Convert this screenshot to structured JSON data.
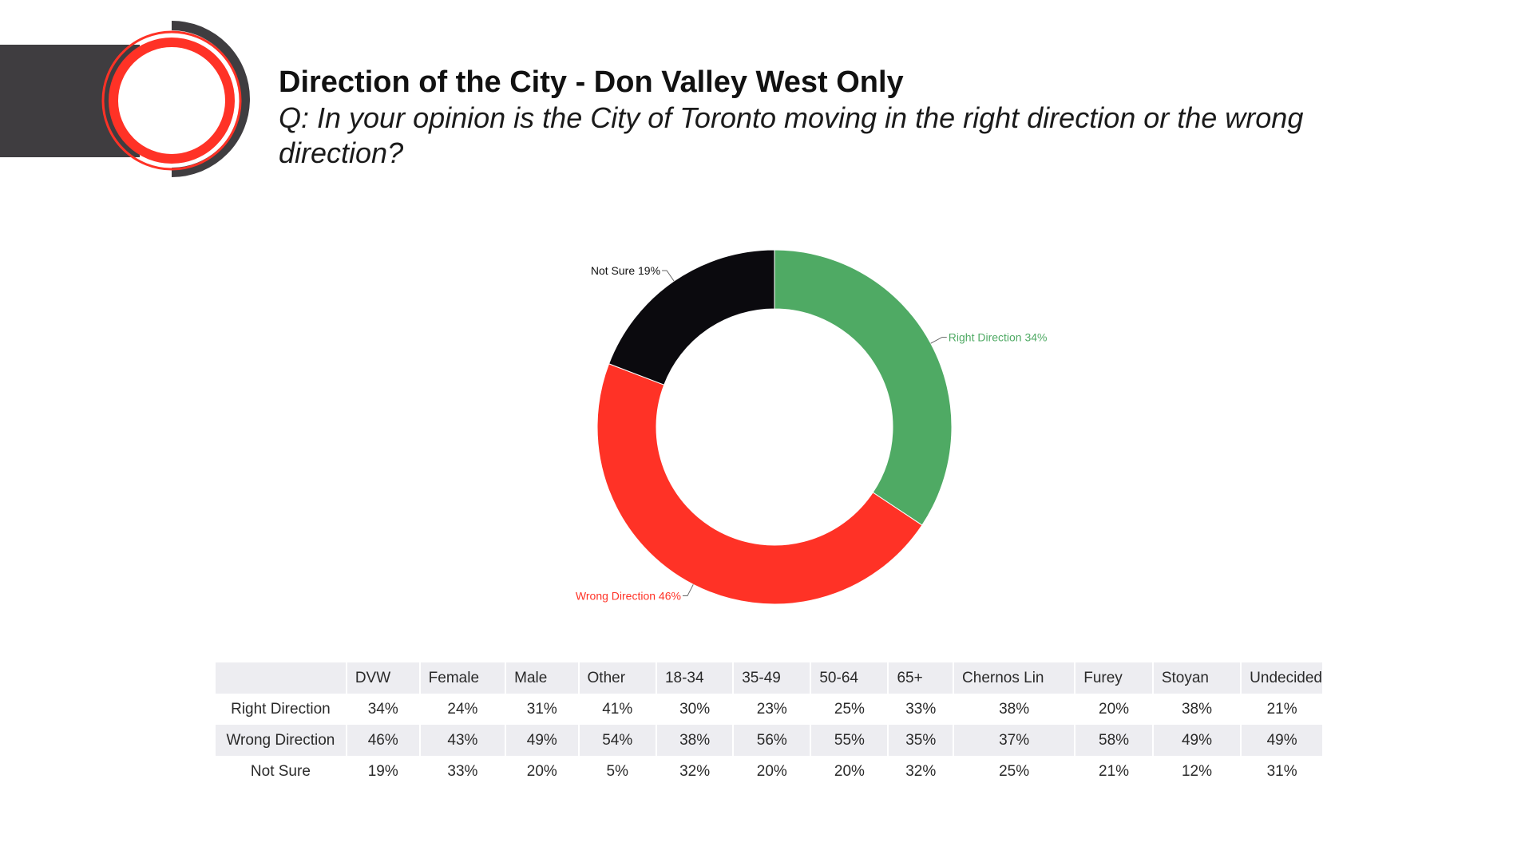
{
  "header": {
    "title": "Direction of the City - Don Valley West Only",
    "subtitle": "Q: In your opinion is the City of Toronto moving in the right direction or the wrong direction?"
  },
  "colors": {
    "band": "#3f3d40",
    "accent_red": "#ff3226",
    "right": "#4faa64",
    "wrong": "#ff3226",
    "not_sure": "#0b0a0e"
  },
  "chart_data": {
    "type": "pie",
    "style": "donut",
    "slices": [
      {
        "label": "Right Direction 34%",
        "value": 34,
        "color": "#4faa64",
        "label_color": "#4faa64"
      },
      {
        "label": "Wrong Direction 46%",
        "value": 46,
        "color": "#ff3226",
        "label_color": "#ff3226"
      },
      {
        "label": "Not Sure 19%",
        "value": 19,
        "color": "#0b0a0e",
        "label_color": "#111111"
      }
    ],
    "legend": "none"
  },
  "table": {
    "columns": [
      "",
      "DVW",
      "Female",
      "Male",
      "Other",
      "18-34",
      "35-49",
      "50-64",
      "65+",
      "Chernos Lin",
      "Furey",
      "Stoyan",
      "Undecided"
    ],
    "rows": [
      {
        "label": "Right Direction",
        "values": [
          "34%",
          "24%",
          "31%",
          "41%",
          "30%",
          "23%",
          "25%",
          "33%",
          "38%",
          "20%",
          "38%",
          "21%"
        ]
      },
      {
        "label": "Wrong Direction",
        "values": [
          "46%",
          "43%",
          "49%",
          "54%",
          "38%",
          "56%",
          "55%",
          "35%",
          "37%",
          "58%",
          "49%",
          "49%"
        ]
      },
      {
        "label": "Not Sure",
        "values": [
          "19%",
          "33%",
          "20%",
          "5%",
          "32%",
          "20%",
          "20%",
          "32%",
          "25%",
          "21%",
          "12%",
          "31%"
        ]
      }
    ]
  }
}
